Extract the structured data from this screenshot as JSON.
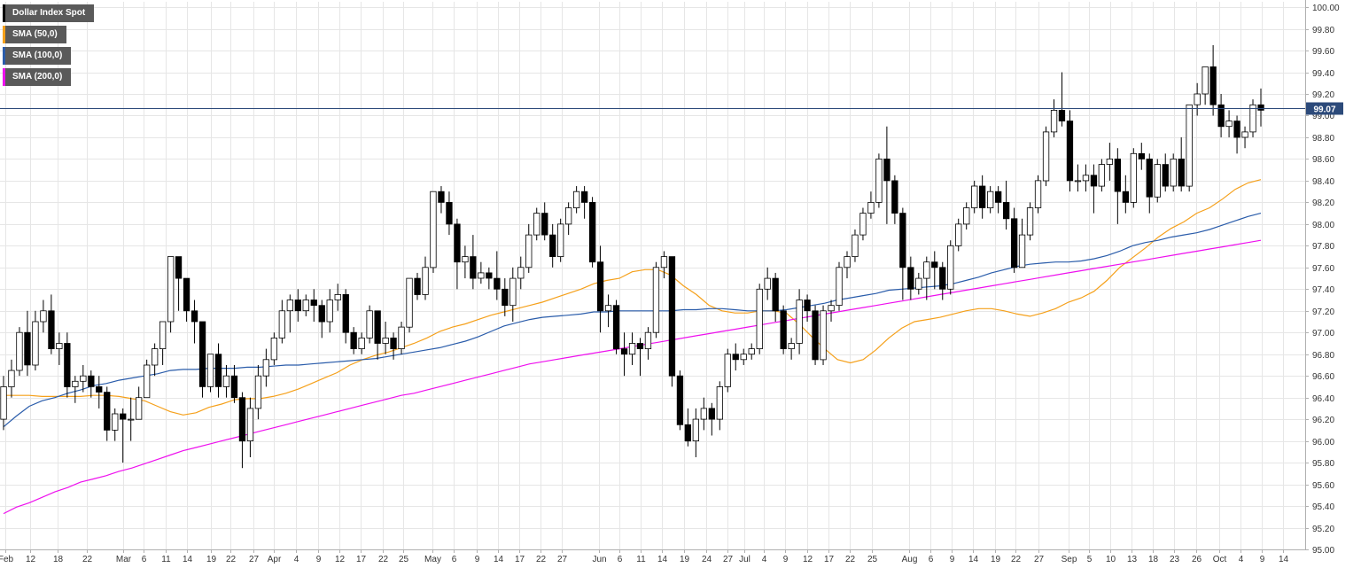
{
  "chart_data": {
    "type": "candlestick",
    "title": "Dollar Index Spot",
    "ylim": [
      95.0,
      100.05
    ],
    "y_ticks": [
      "100.00",
      "99.80",
      "99.60",
      "99.40",
      "99.20",
      "99.00",
      "98.80",
      "98.60",
      "98.40",
      "98.20",
      "98.00",
      "97.80",
      "97.60",
      "97.40",
      "97.20",
      "97.00",
      "96.80",
      "96.60",
      "96.40",
      "96.20",
      "96.00",
      "95.80",
      "95.60",
      "95.40",
      "95.20",
      "95.00"
    ],
    "x_ticks": [
      "Feb",
      "12",
      "18",
      "22",
      "Mar",
      "6",
      "11",
      "14",
      "19",
      "22",
      "27",
      "Apr",
      "4",
      "9",
      "12",
      "17",
      "22",
      "25",
      "May",
      "6",
      "9",
      "14",
      "17",
      "22",
      "27",
      "Jun",
      "6",
      "11",
      "14",
      "19",
      "24",
      "27",
      "Jul",
      "4",
      "9",
      "12",
      "17",
      "22",
      "25",
      "Aug",
      "6",
      "9",
      "14",
      "19",
      "22",
      "27",
      "Sep",
      "5",
      "10",
      "13",
      "18",
      "23",
      "26",
      "Oct",
      "4",
      "9",
      "14"
    ],
    "last_price": "99.07",
    "last_price_value": 99.07,
    "grid": true,
    "legend": "top-left",
    "colors": {
      "up": "#ffffff",
      "down": "#000000",
      "wick": "#000000",
      "sma50": "#f5a01a",
      "sma100": "#2a5caa",
      "sma200": "#ee10ee",
      "price_line": "#2c4a7a",
      "grid": "#e6e6e6",
      "axis": "#b0b0b0",
      "legend_bg": "#5a5a5a",
      "last_price_bg": "#2c4a7a"
    },
    "series": [
      {
        "name": "Dollar Index Spot",
        "color": "#000000"
      },
      {
        "name": "SMA (50,0)",
        "color": "#f5a01a",
        "values": [
          96.42,
          96.42,
          96.42,
          96.41,
          96.41,
          96.41,
          96.41,
          96.42,
          96.42,
          96.41,
          96.39,
          96.37,
          96.32,
          96.27,
          96.24,
          96.26,
          96.31,
          96.34,
          96.38,
          96.39,
          96.39,
          96.41,
          96.44,
          96.48,
          96.53,
          96.58,
          96.63,
          96.7,
          96.75,
          96.79,
          96.82,
          96.86,
          96.9,
          96.95,
          97.01,
          97.05,
          97.08,
          97.12,
          97.16,
          97.19,
          97.22,
          97.25,
          97.28,
          97.32,
          97.36,
          97.4,
          97.45,
          97.48,
          97.5,
          97.56,
          97.58,
          97.58,
          97.53,
          97.43,
          97.35,
          97.25,
          97.2,
          97.18,
          97.18,
          97.2,
          97.2,
          97.18,
          97.08,
          96.96,
          96.85,
          96.75,
          96.72,
          96.75,
          96.84,
          96.95,
          97.04,
          97.1,
          97.12,
          97.14,
          97.17,
          97.2,
          97.22,
          97.22,
          97.2,
          97.17,
          97.15,
          97.18,
          97.22,
          97.28,
          97.32,
          97.38,
          97.48,
          97.6,
          97.69,
          97.78,
          97.88,
          97.96,
          98.02,
          98.1,
          98.15,
          98.23,
          98.32,
          98.38,
          98.41
        ]
      },
      {
        "name": "SMA (100,0)",
        "color": "#2a5caa",
        "values": [
          96.13,
          96.23,
          96.32,
          96.37,
          96.4,
          96.44,
          96.47,
          96.51,
          96.53,
          96.56,
          96.58,
          96.6,
          96.62,
          96.65,
          96.66,
          96.66,
          96.67,
          96.67,
          96.67,
          96.68,
          96.68,
          96.69,
          96.7,
          96.7,
          96.71,
          96.72,
          96.73,
          96.74,
          96.75,
          96.76,
          96.78,
          96.8,
          96.82,
          96.84,
          96.86,
          96.89,
          96.92,
          96.96,
          97.01,
          97.06,
          97.09,
          97.12,
          97.14,
          97.15,
          97.16,
          97.17,
          97.19,
          97.19,
          97.2,
          97.2,
          97.2,
          97.2,
          97.2,
          97.21,
          97.21,
          97.22,
          97.22,
          97.21,
          97.2,
          97.2,
          97.2,
          97.21,
          97.23,
          97.25,
          97.27,
          97.3,
          97.32,
          97.34,
          97.36,
          97.39,
          97.4,
          97.41,
          97.42,
          97.43,
          97.45,
          97.48,
          97.51,
          97.55,
          97.58,
          97.61,
          97.63,
          97.64,
          97.65,
          97.65,
          97.66,
          97.68,
          97.71,
          97.75,
          97.8,
          97.83,
          97.85,
          97.88,
          97.9,
          97.92,
          97.95,
          97.99,
          98.03,
          98.07,
          98.1
        ]
      },
      {
        "name": "SMA (200,0)",
        "color": "#ee10ee",
        "values": [
          95.33,
          95.39,
          95.43,
          95.48,
          95.53,
          95.57,
          95.62,
          95.65,
          95.68,
          95.72,
          95.75,
          95.79,
          95.83,
          95.87,
          95.91,
          95.94,
          95.97,
          96.0,
          96.03,
          96.06,
          96.09,
          96.12,
          96.15,
          96.18,
          96.21,
          96.24,
          96.27,
          96.3,
          96.33,
          96.36,
          96.39,
          96.42,
          96.44,
          96.47,
          96.5,
          96.53,
          96.56,
          96.59,
          96.62,
          96.65,
          96.68,
          96.71,
          96.73,
          96.75,
          96.77,
          96.79,
          96.81,
          96.83,
          96.85,
          96.87,
          96.89,
          96.91,
          96.93,
          96.95,
          96.97,
          96.99,
          97.01,
          97.03,
          97.05,
          97.07,
          97.09,
          97.11,
          97.13,
          97.15,
          97.17,
          97.19,
          97.21,
          97.23,
          97.25,
          97.27,
          97.29,
          97.31,
          97.33,
          97.35,
          97.37,
          97.39,
          97.41,
          97.43,
          97.45,
          97.47,
          97.49,
          97.51,
          97.53,
          97.55,
          97.57,
          97.59,
          97.61,
          97.63,
          97.65,
          97.67,
          97.69,
          97.71,
          97.73,
          97.75,
          97.77,
          97.79,
          97.81,
          97.83,
          97.85
        ]
      }
    ],
    "candles": [
      [
        96.2,
        96.5,
        96.1,
        96.6
      ],
      [
        96.5,
        96.65,
        96.4,
        96.75
      ],
      [
        96.65,
        97.0,
        96.6,
        97.05
      ],
      [
        97.0,
        96.7,
        96.6,
        97.2
      ],
      [
        96.7,
        97.1,
        96.65,
        97.2
      ],
      [
        97.1,
        97.2,
        97.0,
        97.3
      ],
      [
        97.2,
        96.85,
        96.8,
        97.35
      ],
      [
        96.85,
        96.9,
        96.7,
        97.0
      ],
      [
        96.9,
        96.5,
        96.4,
        97.0
      ],
      [
        96.5,
        96.55,
        96.35,
        96.6
      ],
      [
        96.55,
        96.6,
        96.45,
        96.7
      ],
      [
        96.6,
        96.5,
        96.4,
        96.65
      ],
      [
        96.5,
        96.45,
        96.3,
        96.6
      ],
      [
        96.45,
        96.1,
        96.0,
        96.5
      ],
      [
        96.1,
        96.25,
        96.0,
        96.3
      ],
      [
        96.25,
        96.2,
        95.8,
        96.3
      ],
      [
        96.2,
        96.2,
        96.0,
        96.4
      ],
      [
        96.2,
        96.4,
        96.2,
        96.5
      ],
      [
        96.4,
        96.7,
        96.4,
        96.75
      ],
      [
        96.7,
        96.85,
        96.6,
        96.9
      ],
      [
        96.85,
        97.1,
        96.7,
        97.1
      ],
      [
        97.1,
        97.7,
        97.0,
        97.7
      ],
      [
        97.7,
        97.5,
        97.2,
        97.65
      ],
      [
        97.5,
        97.2,
        97.1,
        97.5
      ],
      [
        97.2,
        97.1,
        96.9,
        97.3
      ],
      [
        97.1,
        96.5,
        96.4,
        97.1
      ],
      [
        96.5,
        96.8,
        96.45,
        96.8
      ],
      [
        96.8,
        96.5,
        96.4,
        96.9
      ],
      [
        96.5,
        96.6,
        96.4,
        96.7
      ],
      [
        96.6,
        96.4,
        96.35,
        96.7
      ],
      [
        96.4,
        96.0,
        95.75,
        96.45
      ],
      [
        96.0,
        96.3,
        95.85,
        96.4
      ],
      [
        96.3,
        96.6,
        96.2,
        96.7
      ],
      [
        96.6,
        96.75,
        96.5,
        96.85
      ],
      [
        96.75,
        96.95,
        96.7,
        97.0
      ],
      [
        96.95,
        97.2,
        96.9,
        97.3
      ],
      [
        97.2,
        97.3,
        97.0,
        97.35
      ],
      [
        97.3,
        97.2,
        97.1,
        97.4
      ],
      [
        97.2,
        97.3,
        97.15,
        97.35
      ],
      [
        97.3,
        97.25,
        97.1,
        97.4
      ],
      [
        97.25,
        97.1,
        96.95,
        97.3
      ],
      [
        97.1,
        97.3,
        97.0,
        97.4
      ],
      [
        97.3,
        97.35,
        97.2,
        97.45
      ],
      [
        97.35,
        97.0,
        96.9,
        97.4
      ],
      [
        97.0,
        96.85,
        96.8,
        97.05
      ],
      [
        96.85,
        96.95,
        96.8,
        97.0
      ],
      [
        96.95,
        97.2,
        96.9,
        97.25
      ],
      [
        97.2,
        96.9,
        96.75,
        97.2
      ],
      [
        96.9,
        96.95,
        96.8,
        97.1
      ],
      [
        96.95,
        96.85,
        96.75,
        97.0
      ],
      [
        96.85,
        97.05,
        96.8,
        97.1
      ],
      [
        97.05,
        97.5,
        97.0,
        97.5
      ],
      [
        97.5,
        97.35,
        97.3,
        97.55
      ],
      [
        97.35,
        97.6,
        97.3,
        97.7
      ],
      [
        97.6,
        98.3,
        97.55,
        98.3
      ],
      [
        98.3,
        98.2,
        98.1,
        98.35
      ],
      [
        98.2,
        98.0,
        97.9,
        98.3
      ],
      [
        98.0,
        97.65,
        97.4,
        98.05
      ],
      [
        97.65,
        97.7,
        97.5,
        97.8
      ],
      [
        97.7,
        97.5,
        97.4,
        97.9
      ],
      [
        97.5,
        97.55,
        97.45,
        97.65
      ],
      [
        97.55,
        97.5,
        97.4,
        97.6
      ],
      [
        97.5,
        97.4,
        97.3,
        97.75
      ],
      [
        97.4,
        97.25,
        97.15,
        97.5
      ],
      [
        97.25,
        97.5,
        97.1,
        97.6
      ],
      [
        97.5,
        97.6,
        97.4,
        97.7
      ],
      [
        97.6,
        97.9,
        97.55,
        98.0
      ],
      [
        97.9,
        98.1,
        97.85,
        98.15
      ],
      [
        98.1,
        97.9,
        97.85,
        98.2
      ],
      [
        97.9,
        97.7,
        97.6,
        98.0
      ],
      [
        97.7,
        98.0,
        97.65,
        98.05
      ],
      [
        98.0,
        98.15,
        97.9,
        98.2
      ],
      [
        98.15,
        98.3,
        98.1,
        98.35
      ],
      [
        98.3,
        98.2,
        98.05,
        98.35
      ],
      [
        98.2,
        97.65,
        97.6,
        98.25
      ],
      [
        97.65,
        97.2,
        97.0,
        97.8
      ],
      [
        97.2,
        97.25,
        97.05,
        97.35
      ],
      [
        97.25,
        96.85,
        96.8,
        97.3
      ],
      [
        96.85,
        96.8,
        96.6,
        97.0
      ],
      [
        96.8,
        96.9,
        96.7,
        97.0
      ],
      [
        96.9,
        96.85,
        96.6,
        96.95
      ],
      [
        96.85,
        97.0,
        96.75,
        97.05
      ],
      [
        97.0,
        97.6,
        96.95,
        97.65
      ],
      [
        97.6,
        97.7,
        97.5,
        97.75
      ],
      [
        97.7,
        96.6,
        96.5,
        97.7
      ],
      [
        96.6,
        96.15,
        96.1,
        96.65
      ],
      [
        96.15,
        96.0,
        95.95,
        96.3
      ],
      [
        96.0,
        96.2,
        95.85,
        96.3
      ],
      [
        96.2,
        96.3,
        96.1,
        96.4
      ],
      [
        96.3,
        96.2,
        96.05,
        96.35
      ],
      [
        96.2,
        96.5,
        96.1,
        96.55
      ],
      [
        96.5,
        96.8,
        96.45,
        96.85
      ],
      [
        96.8,
        96.75,
        96.65,
        96.9
      ],
      [
        96.75,
        96.8,
        96.7,
        96.85
      ],
      [
        96.8,
        96.85,
        96.75,
        96.9
      ],
      [
        96.85,
        97.4,
        96.8,
        97.45
      ],
      [
        97.4,
        97.5,
        97.3,
        97.6
      ],
      [
        97.5,
        97.2,
        97.1,
        97.55
      ],
      [
        97.2,
        96.85,
        96.8,
        97.25
      ],
      [
        96.85,
        96.9,
        96.75,
        96.95
      ],
      [
        96.9,
        97.3,
        96.8,
        97.4
      ],
      [
        97.3,
        97.2,
        97.1,
        97.35
      ],
      [
        97.2,
        96.75,
        96.7,
        97.25
      ],
      [
        96.75,
        97.2,
        96.7,
        97.25
      ],
      [
        97.2,
        97.25,
        97.1,
        97.3
      ],
      [
        97.25,
        97.6,
        97.2,
        97.65
      ],
      [
        97.6,
        97.7,
        97.5,
        97.75
      ],
      [
        97.7,
        97.9,
        97.65,
        97.95
      ],
      [
        97.9,
        98.1,
        97.85,
        98.15
      ],
      [
        98.1,
        98.2,
        98.05,
        98.3
      ],
      [
        98.2,
        98.6,
        98.15,
        98.65
      ],
      [
        98.6,
        98.4,
        98.0,
        98.9
      ],
      [
        98.4,
        98.1,
        98.0,
        98.45
      ],
      [
        98.1,
        97.6,
        97.3,
        98.15
      ],
      [
        97.6,
        97.4,
        97.3,
        97.7
      ],
      [
        97.4,
        97.5,
        97.35,
        97.55
      ],
      [
        97.5,
        97.65,
        97.3,
        97.7
      ],
      [
        97.65,
        97.6,
        97.4,
        97.75
      ],
      [
        97.6,
        97.4,
        97.3,
        97.65
      ],
      [
        97.4,
        97.8,
        97.35,
        97.85
      ],
      [
        97.8,
        98.0,
        97.75,
        98.05
      ],
      [
        98.0,
        98.15,
        97.95,
        98.2
      ],
      [
        98.15,
        98.35,
        98.1,
        98.4
      ],
      [
        98.35,
        98.15,
        98.05,
        98.45
      ],
      [
        98.15,
        98.3,
        98.1,
        98.35
      ],
      [
        98.3,
        98.2,
        98.1,
        98.35
      ],
      [
        98.2,
        98.05,
        97.95,
        98.4
      ],
      [
        98.05,
        97.6,
        97.55,
        98.15
      ],
      [
        97.6,
        97.9,
        97.6,
        98.05
      ],
      [
        97.9,
        98.15,
        97.85,
        98.2
      ],
      [
        98.15,
        98.4,
        98.1,
        98.45
      ],
      [
        98.4,
        98.85,
        98.35,
        98.9
      ],
      [
        98.85,
        99.05,
        98.8,
        99.15
      ],
      [
        99.05,
        98.95,
        98.9,
        99.4
      ],
      [
        98.95,
        98.4,
        98.3,
        99.05
      ],
      [
        98.4,
        98.4,
        98.3,
        98.55
      ],
      [
        98.4,
        98.45,
        98.3,
        98.55
      ],
      [
        98.45,
        98.35,
        98.1,
        98.55
      ],
      [
        98.35,
        98.55,
        98.3,
        98.6
      ],
      [
        98.55,
        98.6,
        98.4,
        98.75
      ],
      [
        98.6,
        98.3,
        98.0,
        98.7
      ],
      [
        98.3,
        98.2,
        98.1,
        98.45
      ],
      [
        98.2,
        98.65,
        98.15,
        98.7
      ],
      [
        98.65,
        98.6,
        98.5,
        98.75
      ],
      [
        98.6,
        98.25,
        98.1,
        98.65
      ],
      [
        98.25,
        98.55,
        98.2,
        98.6
      ],
      [
        98.55,
        98.35,
        98.3,
        98.65
      ],
      [
        98.35,
        98.6,
        98.3,
        98.65
      ],
      [
        98.6,
        98.35,
        98.3,
        98.8
      ],
      [
        98.35,
        99.1,
        98.3,
        99.1
      ],
      [
        99.1,
        99.2,
        99.0,
        99.3
      ],
      [
        99.2,
        99.45,
        99.1,
        99.45
      ],
      [
        99.45,
        99.1,
        99.0,
        99.65
      ],
      [
        99.1,
        98.9,
        98.8,
        99.2
      ],
      [
        98.9,
        98.95,
        98.8,
        99.05
      ],
      [
        98.95,
        98.8,
        98.65,
        99.0
      ],
      [
        98.8,
        98.85,
        98.7,
        98.9
      ],
      [
        98.85,
        99.1,
        98.8,
        99.15
      ],
      [
        99.1,
        99.05,
        98.9,
        99.25
      ]
    ]
  }
}
